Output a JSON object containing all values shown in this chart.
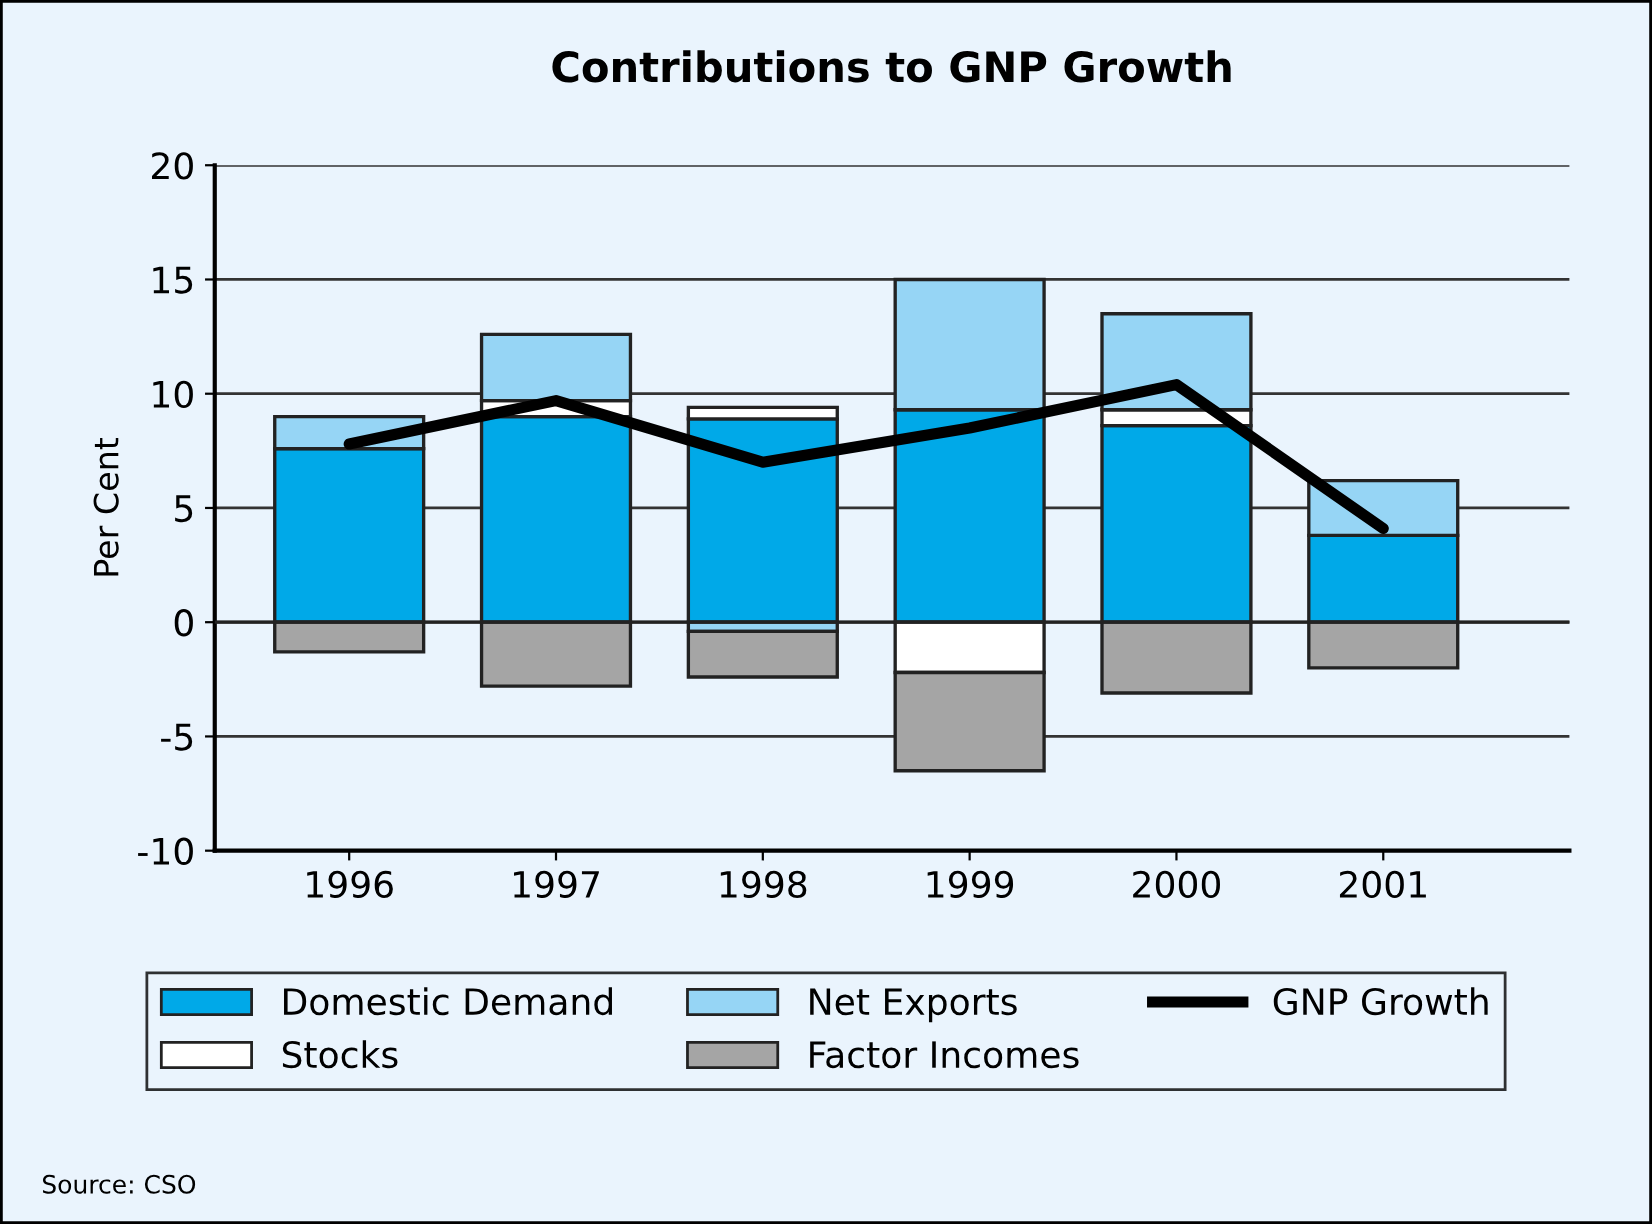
{
  "chart_data": {
    "type": "bar",
    "title": "Contributions to GNP Growth",
    "ylabel": "Per Cent",
    "categories": [
      "1996",
      "1997",
      "1998",
      "1999",
      "2000",
      "2001"
    ],
    "stacked": true,
    "series": [
      {
        "name": "Domestic Demand",
        "color": "#00a9e8",
        "values": [
          7.6,
          9.0,
          8.9,
          9.3,
          8.6,
          3.8
        ]
      },
      {
        "name": "Stocks",
        "color": "#ffffff",
        "values": [
          0,
          0.7,
          0.5,
          -2.2,
          0.7,
          0
        ]
      },
      {
        "name": "Net Exports",
        "color": "#96d5f5",
        "values": [
          1.4,
          2.9,
          -0.4,
          5.7,
          4.2,
          2.4
        ]
      },
      {
        "name": "Factor Incomes",
        "color": "#a5a5a5",
        "values": [
          -1.3,
          -2.8,
          -2.0,
          -4.3,
          -3.1,
          -2.0
        ]
      },
      {
        "name": "GNP Growth",
        "type": "line",
        "color": "#000000",
        "values": [
          7.8,
          9.7,
          7.0,
          8.5,
          10.4,
          4.1
        ]
      }
    ],
    "ylim": [
      -10,
      20
    ],
    "yticks": [
      -10,
      -5,
      0,
      5,
      10,
      15,
      20
    ],
    "grid": "y",
    "legend": "bottom",
    "annotations": [
      "Source: CSO"
    ]
  }
}
